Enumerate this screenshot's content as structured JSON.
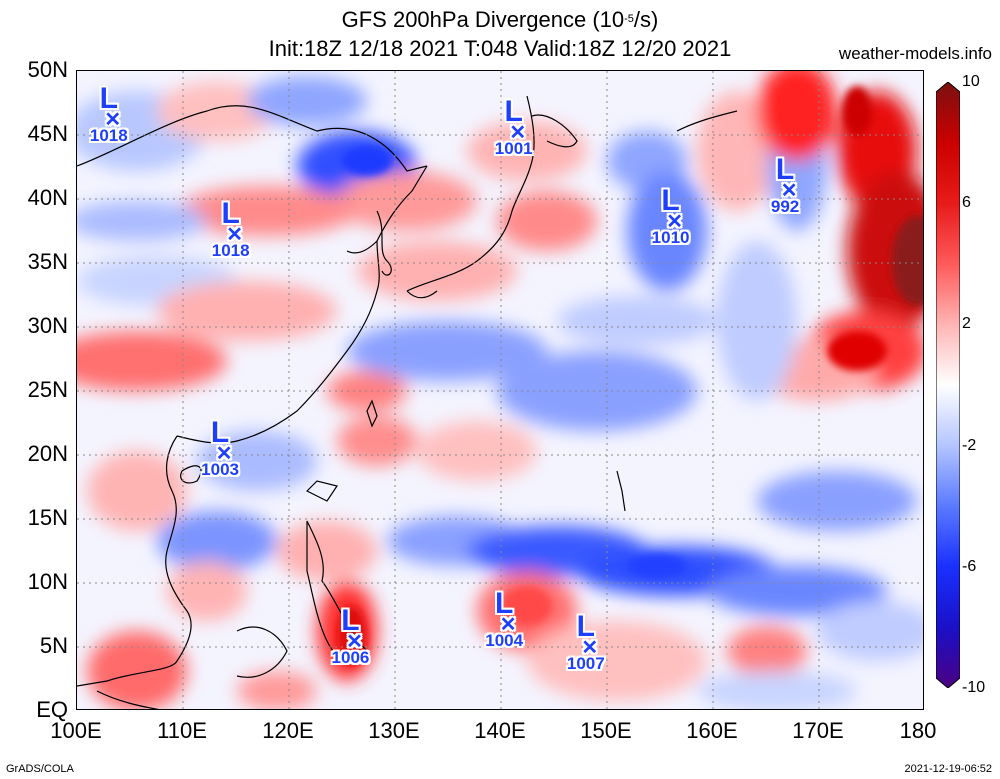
{
  "title": {
    "line1_prefix": "GFS 200hPa Divergence (10",
    "line1_sup": "-5",
    "line1_suffix": "/s)",
    "line2": "Init:18Z 12/18 2021 T:048 Valid:18Z 12/20 2021"
  },
  "site": "weather-models.info",
  "footer": {
    "left": "GrADS/COLA",
    "right": "2021-12-19-06:52"
  },
  "axes": {
    "lat_labels": [
      "50N",
      "45N",
      "40N",
      "35N",
      "30N",
      "25N",
      "20N",
      "15N",
      "10N",
      "5N",
      "EQ"
    ],
    "lon_labels": [
      "100E",
      "110E",
      "120E",
      "130E",
      "140E",
      "150E",
      "160E",
      "170E",
      "180"
    ],
    "lat_range": [
      0,
      50
    ],
    "lon_range": [
      100,
      180
    ]
  },
  "colorbar": {
    "labels": [
      "10",
      "6",
      "2",
      "-2",
      "-6",
      "-10"
    ],
    "values": [
      10,
      6,
      2,
      -2,
      -6,
      -10
    ],
    "colors": [
      "#4b0082",
      "#0000ff",
      "#4f7bff",
      "#bcd0ff",
      "#ffffff",
      "#ffc7c7",
      "#ff6060",
      "#e00000",
      "#9e0000"
    ]
  },
  "lows": [
    {
      "symbol": "L",
      "pressure": "1018",
      "lon": 103,
      "lat": 45.8
    },
    {
      "symbol": "L",
      "pressure": "1018",
      "lon": 114.5,
      "lat": 36.8
    },
    {
      "symbol": "L",
      "pressure": "1001",
      "lon": 141.2,
      "lat": 44.8
    },
    {
      "symbol": "L",
      "pressure": "1010",
      "lon": 156,
      "lat": 37.8
    },
    {
      "symbol": "L",
      "pressure": "992",
      "lon": 166.8,
      "lat": 40.2
    },
    {
      "symbol": "L",
      "pressure": "1003",
      "lon": 113.5,
      "lat": 19.7
    },
    {
      "symbol": "L",
      "pressure": "1006",
      "lon": 125.8,
      "lat": 5
    },
    {
      "symbol": "L",
      "pressure": "1004",
      "lon": 140.3,
      "lat": 6.3
    },
    {
      "symbol": "L",
      "pressure": "1007",
      "lon": 148,
      "lat": 4.5
    }
  ]
}
